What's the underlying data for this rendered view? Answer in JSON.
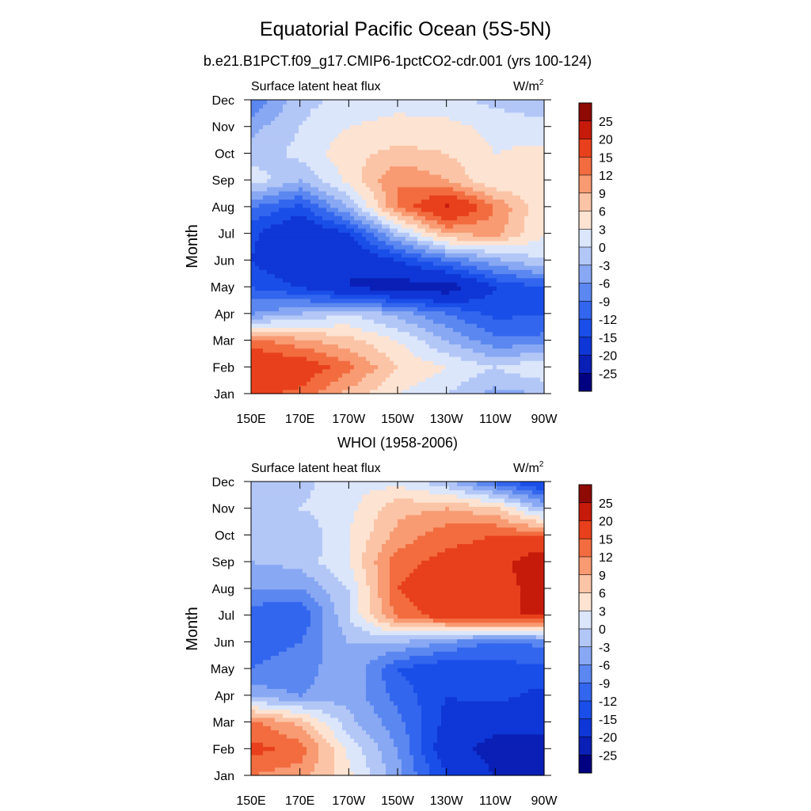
{
  "figure": {
    "title": "Equatorial Pacific Ocean (5S-5N)"
  },
  "chart_data": [
    {
      "type": "heatmap",
      "subtitle": "b.e21.B1PCT.f09_g17.CMIP6-1pctCO2-cdr.001 (yrs 100-124)",
      "left_label": "Surface latent heat flux",
      "units": "W/m",
      "units_sup": "2",
      "ylabel": "Month",
      "x_ticks": [
        "150E",
        "170E",
        "170W",
        "150W",
        "130W",
        "110W",
        "90W"
      ],
      "x_range_deg_east": [
        150,
        270
      ],
      "y_ticks": [
        "Jan",
        "Feb",
        "Mar",
        "Apr",
        "May",
        "Jun",
        "Jul",
        "Aug",
        "Sep",
        "Oct",
        "Nov",
        "Dec"
      ],
      "field_approx_grid": {
        "x_deg_east": [
          150,
          170,
          190,
          210,
          230,
          250,
          270
        ],
        "months": [
          "Jan",
          "Feb",
          "Mar",
          "Apr",
          "May",
          "Jun",
          "Jul",
          "Aug",
          "Sep",
          "Oct",
          "Nov",
          "Dec"
        ],
        "values": [
          [
            16,
            14,
            8,
            3,
            0,
            -4,
            -3
          ],
          [
            20,
            18,
            13,
            6,
            3,
            0,
            3
          ],
          [
            13,
            10,
            7,
            3,
            -3,
            -8,
            -8
          ],
          [
            -6,
            -3,
            0,
            -4,
            -9,
            -13,
            -12
          ],
          [
            -12,
            -15,
            -20,
            -22,
            -23,
            -15,
            -12
          ],
          [
            -15,
            -20,
            -20,
            -15,
            -9,
            -4,
            0
          ],
          [
            -14,
            -20,
            -15,
            -2,
            9,
            10,
            3
          ],
          [
            -9,
            -13,
            -3,
            12,
            21,
            12,
            3
          ],
          [
            2,
            -3,
            4,
            12,
            9,
            3,
            3
          ],
          [
            -2,
            1,
            5,
            7,
            6,
            3,
            4
          ],
          [
            -4,
            0,
            3,
            4,
            4,
            2,
            1
          ],
          [
            -9,
            -1,
            1,
            2,
            1,
            -1,
            -2
          ]
        ]
      }
    },
    {
      "type": "heatmap",
      "subtitle": "WHOI (1958-2006)",
      "left_label": "Surface latent heat flux",
      "units": "W/m",
      "units_sup": "2",
      "ylabel": "Month",
      "x_ticks": [
        "150E",
        "170E",
        "170W",
        "150W",
        "130W",
        "110W",
        "90W"
      ],
      "x_range_deg_east": [
        150,
        270
      ],
      "y_ticks": [
        "Jan",
        "Feb",
        "Mar",
        "Apr",
        "May",
        "Jun",
        "Jul",
        "Aug",
        "Sep",
        "Oct",
        "Nov",
        "Dec"
      ],
      "field_approx_grid": {
        "x_deg_east": [
          150,
          170,
          190,
          210,
          230,
          250,
          270
        ],
        "months": [
          "Jan",
          "Feb",
          "Mar",
          "Apr",
          "May",
          "Jun",
          "Jul",
          "Aug",
          "Sep",
          "Oct",
          "Nov",
          "Dec"
        ],
        "values": [
          [
            12,
            10,
            4,
            -5,
            -15,
            -20,
            -25
          ],
          [
            16,
            14,
            2,
            -6,
            -18,
            -22,
            -22
          ],
          [
            13,
            8,
            -2,
            -8,
            -16,
            -18,
            -18
          ],
          [
            -4,
            -6,
            -4,
            -10,
            -15,
            -14,
            -16
          ],
          [
            -9,
            -8,
            -3,
            -12,
            -15,
            -13,
            -13
          ],
          [
            -10,
            -9,
            -3,
            -3,
            -6,
            -10,
            -8
          ],
          [
            -11,
            -12,
            0,
            13,
            17,
            20,
            20
          ],
          [
            -6,
            -6,
            0,
            15,
            18,
            19,
            21
          ],
          [
            -3,
            -2,
            3,
            14,
            16,
            17,
            25
          ],
          [
            -2,
            -3,
            3,
            10,
            14,
            15,
            14
          ],
          [
            -2,
            0,
            2,
            8,
            9,
            7,
            -3
          ],
          [
            -1,
            -1,
            2,
            2,
            -2,
            -10,
            -16
          ]
        ]
      }
    }
  ],
  "colorbar": {
    "labels": [
      "25",
      "20",
      "15",
      "12",
      "9",
      "6",
      "3",
      "0",
      "-3",
      "-6",
      "-9",
      "-12",
      "-15",
      "-20",
      "-25"
    ],
    "levels": [
      -25,
      -20,
      -15,
      -12,
      -9,
      -6,
      -3,
      0,
      3,
      6,
      9,
      12,
      15,
      20,
      25
    ],
    "colors": [
      "#000080",
      "#0a1fb5",
      "#0f36d6",
      "#1a4ee8",
      "#3366ee",
      "#5b87f0",
      "#88a8f3",
      "#b3c7f7",
      "#dbe6fb",
      "#fde3d2",
      "#fbc4a6",
      "#f89a72",
      "#f26c3f",
      "#e8401c",
      "#c61a0b",
      "#8e0a04"
    ]
  }
}
